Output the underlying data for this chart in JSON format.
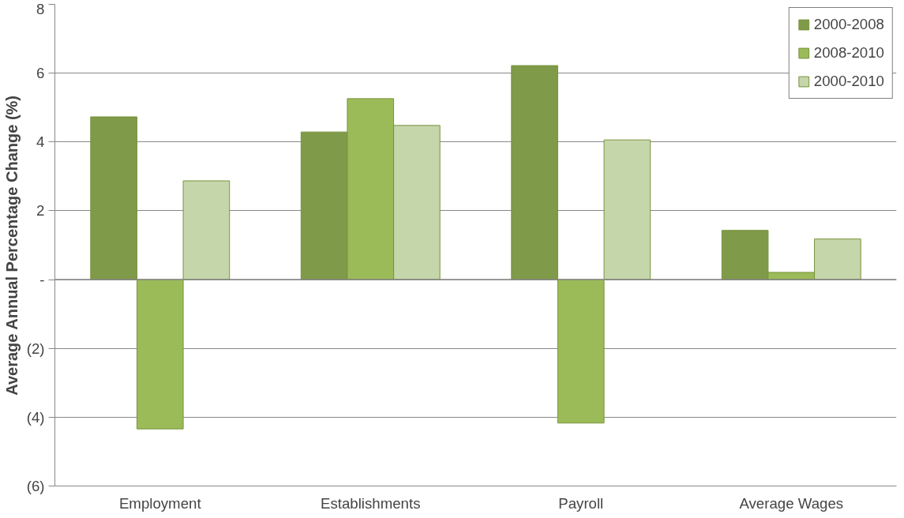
{
  "chart_data": {
    "type": "bar",
    "ylabel": "Average Annual Percentage Change (%)",
    "categories": [
      "Employment",
      "Establishments",
      "Payroll",
      "Average Wages"
    ],
    "series": [
      {
        "name": "2000-2008",
        "color": "#7f9a48",
        "values": [
          4.73,
          4.29,
          6.22,
          1.43
        ]
      },
      {
        "name": "2008-2010",
        "color": "#9bbb59",
        "values": [
          -4.34,
          5.26,
          -4.17,
          0.21
        ]
      },
      {
        "name": "2000-2010",
        "color": "#c6d6ab",
        "values": [
          2.87,
          4.48,
          4.06,
          1.18
        ]
      }
    ],
    "ylim": [
      -6,
      8
    ],
    "yticks": [
      {
        "value": -6,
        "label": "(6)"
      },
      {
        "value": -4,
        "label": "(4)"
      },
      {
        "value": -2,
        "label": "(2)"
      },
      {
        "value": 0,
        "label": "-"
      },
      2,
      4,
      6,
      8
    ],
    "grid": "y",
    "legend": "top right"
  }
}
